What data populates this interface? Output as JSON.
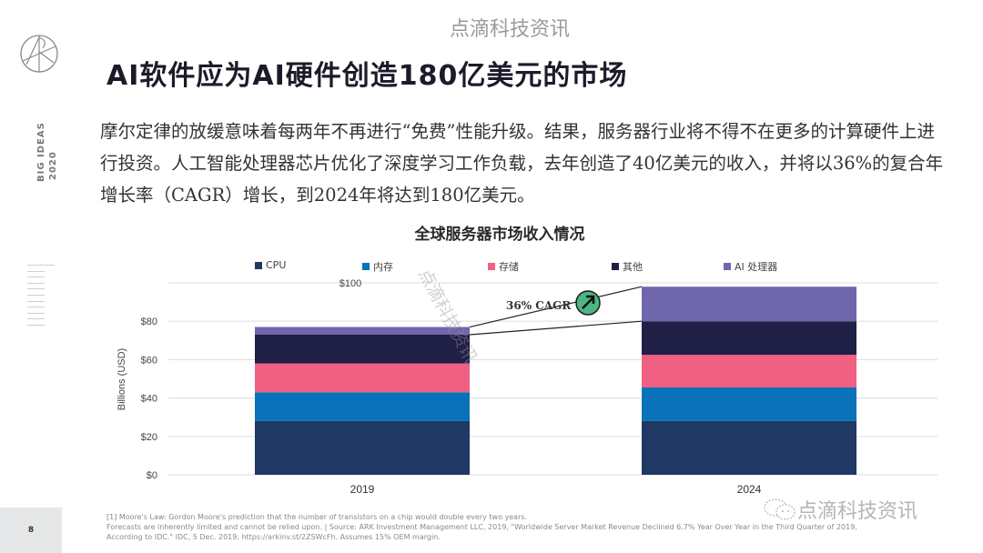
{
  "header": {
    "watermark": "点滴科技资讯",
    "title": "AI软件应为AI硬件创造180亿美元的市场",
    "side_label_line1": "BIG IDEAS",
    "side_label_line2": "2020"
  },
  "body_text": "摩尔定律的放缓意味着每两年不再进行“免费”性能升级。结果，服务器行业将不得不在更多的计算硬件上进行投资。人工智能处理器芯片优化了深度学习工作负载，去年创造了40亿美元的收入，并将以36%的复合年增长率（CAGR）增长，到2024年将达到180亿美元。",
  "chart_data": {
    "type": "bar",
    "stacked": true,
    "title": "全球服务器市场收入情况",
    "xlabel": "",
    "ylabel": "Billions (USD)",
    "ylim": [
      0,
      100
    ],
    "yticks": [
      "$0",
      "$20",
      "$40",
      "$60",
      "$80",
      "$100"
    ],
    "grid": true,
    "legend_position": "top",
    "categories": [
      "2019",
      "2024"
    ],
    "series": [
      {
        "name": "CPU",
        "color": "#1f3864",
        "values": [
          28,
          28
        ]
      },
      {
        "name": "内存",
        "color": "#0a72b8",
        "values": [
          15,
          17.5
        ]
      },
      {
        "name": "存储",
        "color": "#f06082",
        "values": [
          15,
          17
        ]
      },
      {
        "name": "其他",
        "color": "#201f45",
        "values": [
          15,
          17.5
        ]
      },
      {
        "name": "AI 处理器",
        "color": "#6f66ad",
        "values": [
          4,
          18
        ]
      }
    ],
    "annotation": {
      "label": "36% CAGR",
      "icon": "arrow-up-right-icon",
      "icon_color": "#4cb584"
    }
  },
  "watermark_diagonal": "点滴科技资讯",
  "footer": {
    "page_number": "8",
    "footnote_line1": "[1] Moore's Law: Gordon Moore's prediction that the number of transistors on a chip would double every two years.",
    "footnote_line2": "Forecasts are inherently limited and cannot be relied upon.  |  Source: ARK Investment Management LLC, 2019, \"Worldwide Server Market Revenue Declined 6.7% Year Over Year in the Third Quarter of 2019,",
    "footnote_line3": "According to IDC.\" IDC, 5 Dec. 2019, https://arkinv.st/2ZSWcFh. Assumes 15% OEM margin.",
    "wechat_watermark": "点滴科技资讯"
  }
}
